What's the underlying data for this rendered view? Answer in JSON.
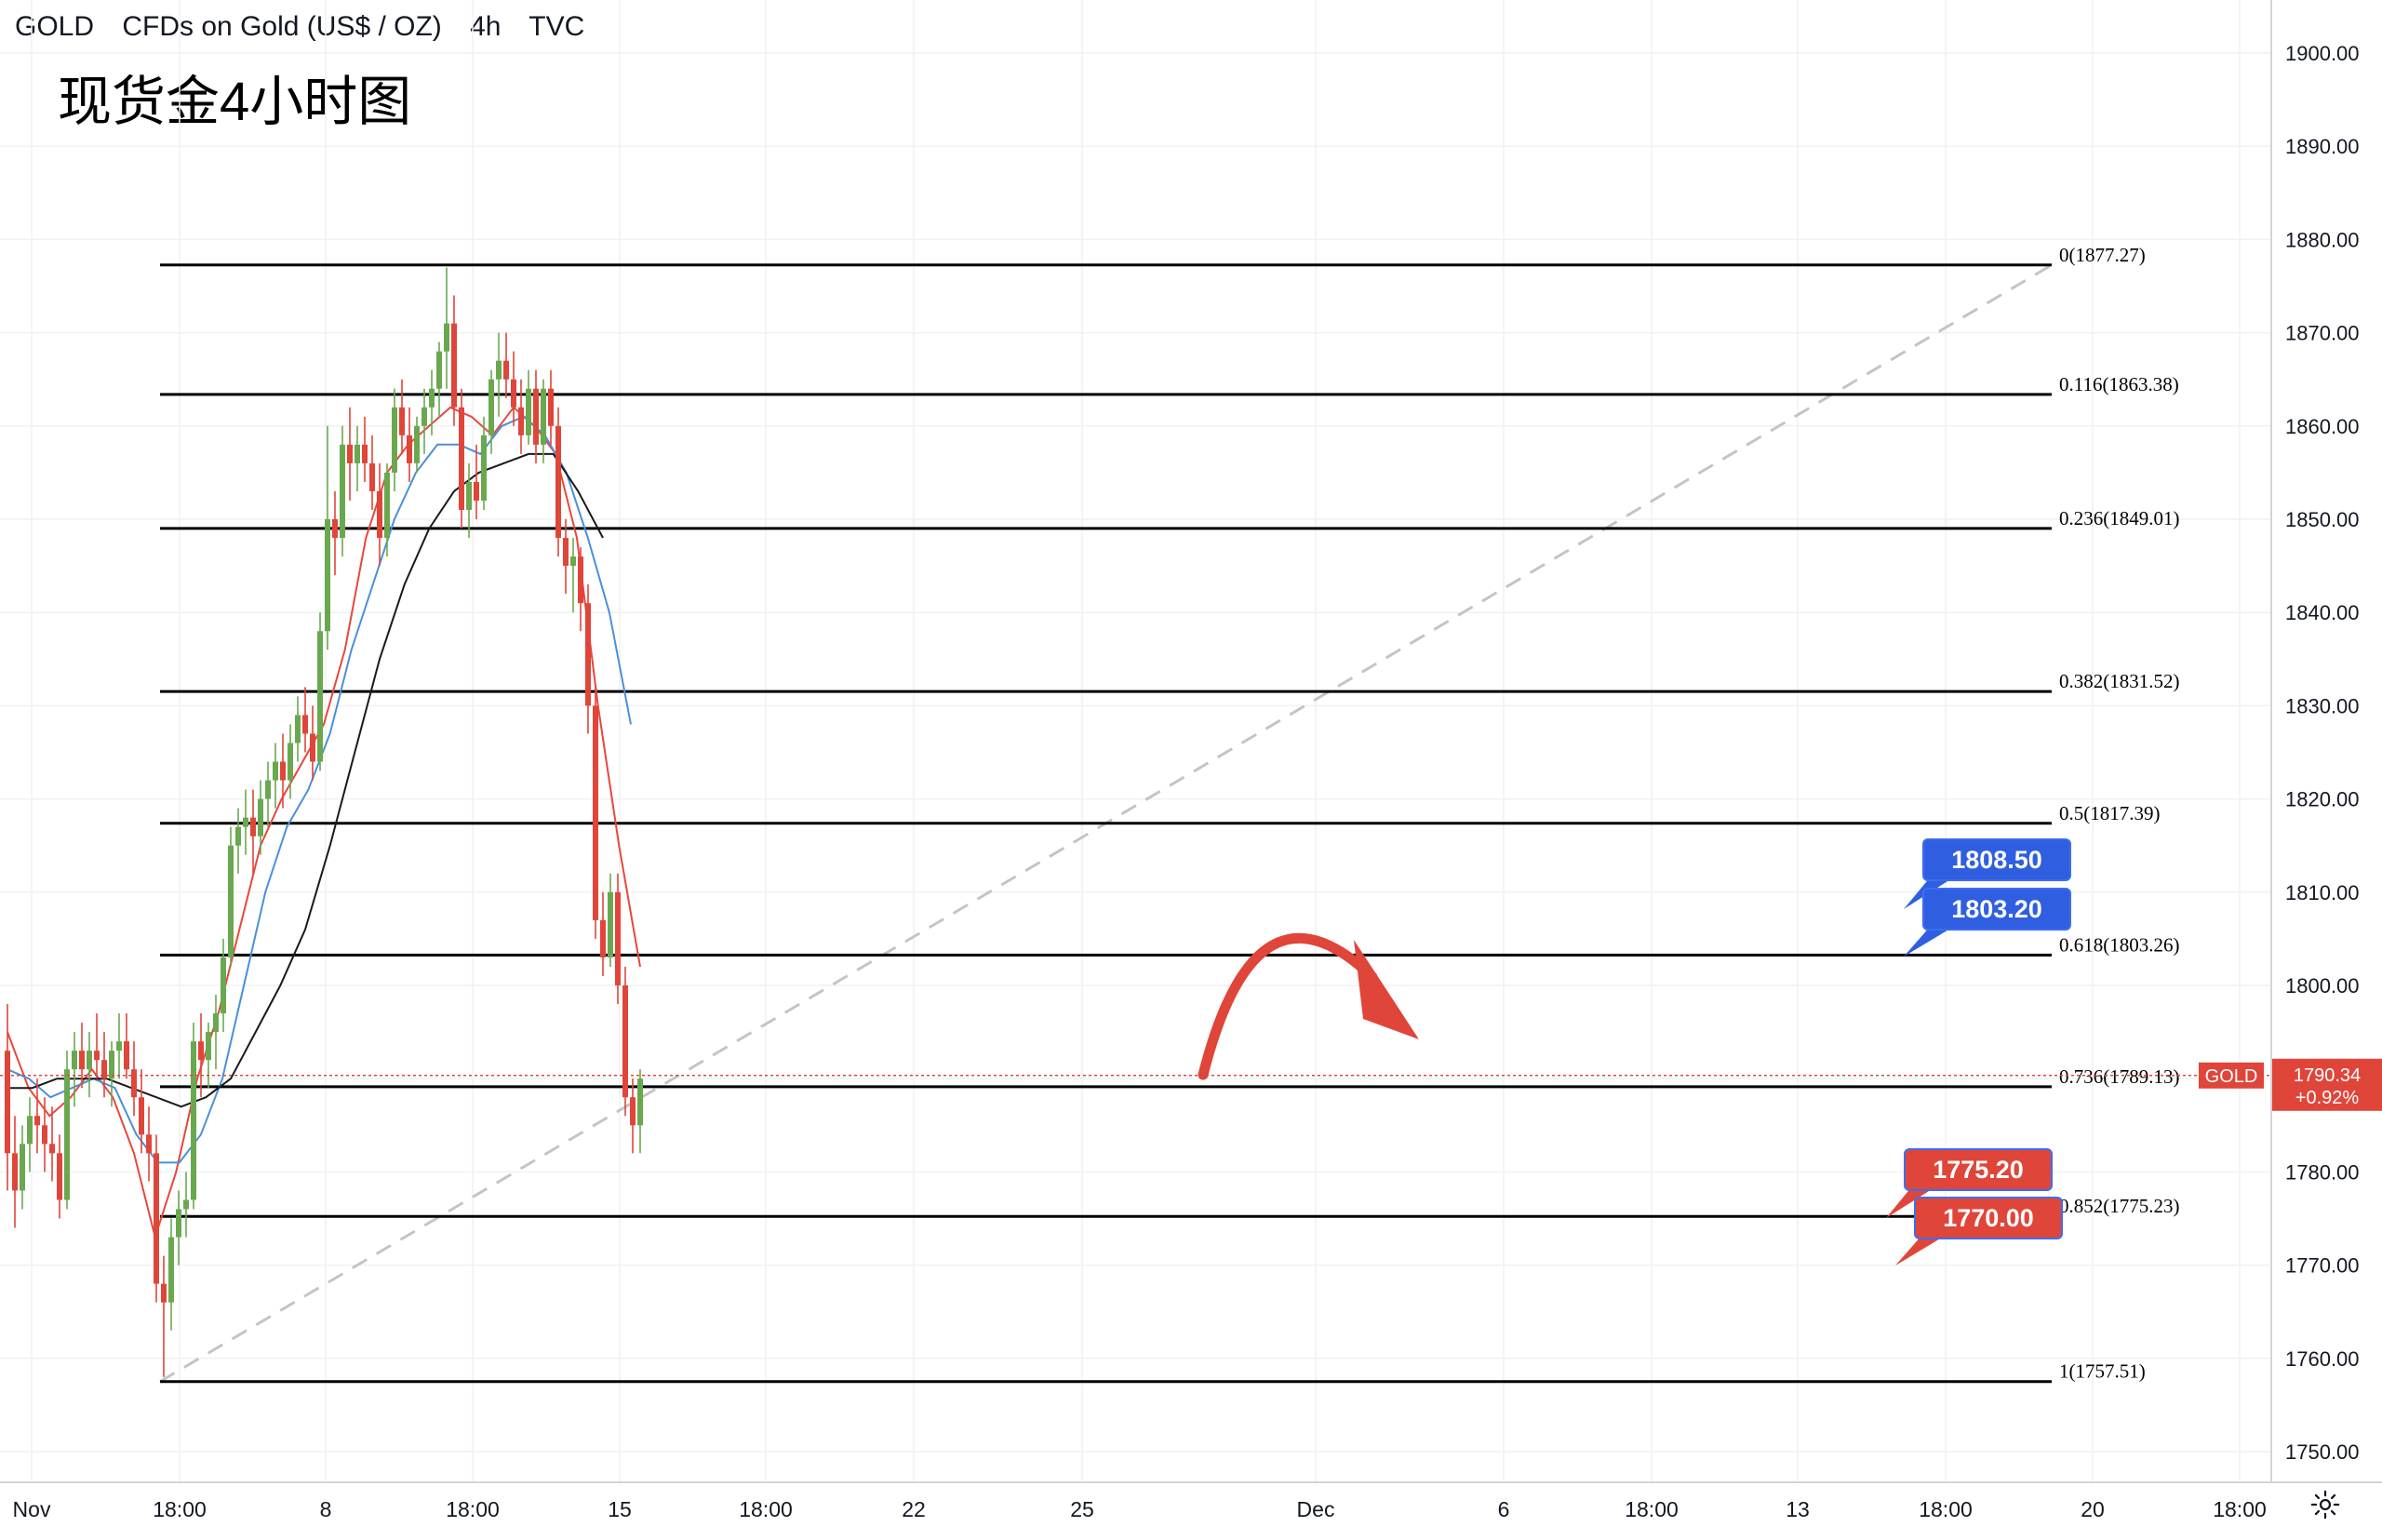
{
  "header": {
    "symbol": "GOLD",
    "description": "CFDs on Gold (US$ / OZ)",
    "interval": "4h",
    "source": "TVC"
  },
  "title": "现货金4小时图",
  "colors": {
    "up": "#6aa84f",
    "down": "#e0453a",
    "ma_red": "#e8473c",
    "ma_blue": "#4a90d9",
    "ma_black": "#1a1a1a",
    "fib_line": "#000000",
    "callout_blue": "#2f5fe0",
    "callout_red": "#e0453a",
    "price_tag": "#e0453a",
    "dashed": "#c4c4c4"
  },
  "chart_data": {
    "type": "candlestick",
    "symbol": "GOLD",
    "timeframe": "4h",
    "ylim": [
      1745,
      1905
    ],
    "y_ticks": [
      "1900.00",
      "1890.00",
      "1880.00",
      "1870.00",
      "1860.00",
      "1850.00",
      "1840.00",
      "1830.00",
      "1820.00",
      "1810.00",
      "1800.00",
      "1790.00",
      "1780.00",
      "1770.00",
      "1760.00",
      "1750.00"
    ],
    "x_ticks": [
      "Nov",
      "18:00",
      "8",
      "18:00",
      "15",
      "18:00",
      "22",
      "25",
      "Dec",
      "6",
      "18:00",
      "13",
      "18:00",
      "20",
      "18:00"
    ],
    "candles_ohlc": [
      [
        1793,
        1798,
        1778,
        1782
      ],
      [
        1782,
        1786,
        1774,
        1778
      ],
      [
        1778,
        1785,
        1776,
        1783
      ],
      [
        1783,
        1788,
        1780,
        1786
      ],
      [
        1786,
        1790,
        1782,
        1785
      ],
      [
        1785,
        1788,
        1780,
        1783
      ],
      [
        1783,
        1787,
        1779,
        1782
      ],
      [
        1782,
        1784,
        1775,
        1777
      ],
      [
        1777,
        1793,
        1776,
        1791
      ],
      [
        1791,
        1795,
        1787,
        1793
      ],
      [
        1793,
        1796,
        1789,
        1791
      ],
      [
        1791,
        1795,
        1788,
        1793
      ],
      [
        1793,
        1797,
        1790,
        1792
      ],
      [
        1792,
        1795,
        1788,
        1790
      ],
      [
        1790,
        1794,
        1787,
        1793
      ],
      [
        1793,
        1797,
        1790,
        1794
      ],
      [
        1794,
        1797,
        1790,
        1791
      ],
      [
        1791,
        1794,
        1786,
        1788
      ],
      [
        1788,
        1791,
        1782,
        1784
      ],
      [
        1784,
        1787,
        1779,
        1782
      ],
      [
        1782,
        1784,
        1766,
        1768
      ],
      [
        1768,
        1771,
        1758,
        1766
      ],
      [
        1766,
        1775,
        1763,
        1773
      ],
      [
        1773,
        1778,
        1770,
        1776
      ],
      [
        1776,
        1780,
        1773,
        1777
      ],
      [
        1777,
        1796,
        1776,
        1794
      ],
      [
        1794,
        1797,
        1788,
        1792
      ],
      [
        1792,
        1796,
        1789,
        1795
      ],
      [
        1795,
        1799,
        1791,
        1797
      ],
      [
        1797,
        1805,
        1795,
        1803
      ],
      [
        1803,
        1817,
        1802,
        1815
      ],
      [
        1815,
        1819,
        1812,
        1817
      ],
      [
        1817,
        1821,
        1814,
        1818
      ],
      [
        1818,
        1821,
        1812,
        1816
      ],
      [
        1816,
        1822,
        1814,
        1820
      ],
      [
        1820,
        1824,
        1817,
        1822
      ],
      [
        1822,
        1826,
        1819,
        1824
      ],
      [
        1824,
        1827,
        1819,
        1822
      ],
      [
        1822,
        1828,
        1820,
        1826
      ],
      [
        1826,
        1831,
        1824,
        1829
      ],
      [
        1829,
        1832,
        1825,
        1827
      ],
      [
        1827,
        1830,
        1822,
        1824
      ],
      [
        1824,
        1840,
        1823,
        1838
      ],
      [
        1838,
        1860,
        1836,
        1850
      ],
      [
        1850,
        1853,
        1844,
        1848
      ],
      [
        1848,
        1860,
        1846,
        1858
      ],
      [
        1858,
        1862,
        1852,
        1856
      ],
      [
        1856,
        1860,
        1853,
        1858
      ],
      [
        1858,
        1861,
        1854,
        1856
      ],
      [
        1856,
        1859,
        1851,
        1853
      ],
      [
        1853,
        1856,
        1845,
        1848
      ],
      [
        1848,
        1856,
        1846,
        1855
      ],
      [
        1855,
        1864,
        1853,
        1862
      ],
      [
        1862,
        1865,
        1857,
        1859
      ],
      [
        1859,
        1862,
        1854,
        1856
      ],
      [
        1856,
        1861,
        1855,
        1860
      ],
      [
        1860,
        1864,
        1857,
        1862
      ],
      [
        1862,
        1866,
        1859,
        1864
      ],
      [
        1864,
        1869,
        1861,
        1868
      ],
      [
        1868,
        1877,
        1864,
        1871
      ],
      [
        1871,
        1874,
        1860,
        1862
      ],
      [
        1862,
        1864,
        1849,
        1851
      ],
      [
        1851,
        1856,
        1848,
        1854
      ],
      [
        1854,
        1858,
        1850,
        1852
      ],
      [
        1852,
        1861,
        1851,
        1859
      ],
      [
        1859,
        1866,
        1857,
        1865
      ],
      [
        1865,
        1870,
        1861,
        1867
      ],
      [
        1867,
        1870,
        1863,
        1865
      ],
      [
        1865,
        1868,
        1860,
        1862
      ],
      [
        1862,
        1865,
        1857,
        1859
      ],
      [
        1859,
        1866,
        1858,
        1864
      ],
      [
        1864,
        1866,
        1856,
        1858
      ],
      [
        1858,
        1865,
        1856,
        1864
      ],
      [
        1864,
        1866,
        1858,
        1860
      ],
      [
        1860,
        1862,
        1846,
        1848
      ],
      [
        1848,
        1850,
        1842,
        1845
      ],
      [
        1845,
        1848,
        1840,
        1846
      ],
      [
        1846,
        1847,
        1838,
        1841
      ],
      [
        1841,
        1843,
        1827,
        1830
      ],
      [
        1830,
        1832,
        1805,
        1807
      ],
      [
        1807,
        1810,
        1801,
        1803
      ],
      [
        1803,
        1812,
        1802,
        1810
      ],
      [
        1810,
        1812,
        1798,
        1800
      ],
      [
        1800,
        1802,
        1786,
        1788
      ],
      [
        1788,
        1790,
        1782,
        1785
      ],
      [
        1785,
        1791,
        1782,
        1790
      ]
    ],
    "moving_averages": [
      {
        "color": "#e8473c",
        "values": [
          1795,
          1789,
          1786,
          1788,
          1791,
          1788,
          1782,
          1773,
          1780,
          1790,
          1797,
          1806,
          1815,
          1820,
          1824,
          1828,
          1836,
          1848,
          1855,
          1858,
          1860,
          1862,
          1861,
          1859,
          1862,
          1860,
          1857,
          1848,
          1830,
          1815,
          1802
        ]
      },
      {
        "color": "#4a90d9",
        "values": [
          1791,
          1790,
          1788,
          1789,
          1790,
          1789,
          1784,
          1781,
          1781,
          1784,
          1790,
          1800,
          1810,
          1817,
          1821,
          1827,
          1836,
          1843,
          1850,
          1855,
          1858,
          1858,
          1857,
          1860,
          1861,
          1859,
          1855,
          1848,
          1840,
          1828
        ]
      },
      {
        "color": "#1a1a1a",
        "values": [
          1789,
          1789,
          1790,
          1790,
          1790,
          1789,
          1788,
          1787,
          1788,
          1790,
          1795,
          1800,
          1806,
          1815,
          1825,
          1835,
          1843,
          1849,
          1853,
          1855,
          1856,
          1857,
          1857,
          1853,
          1848
        ]
      }
    ],
    "fib_levels": [
      {
        "label": "0(1877.27)",
        "value": 1877.27
      },
      {
        "label": "0.116(1863.38)",
        "value": 1863.38
      },
      {
        "label": "0.236(1849.01)",
        "value": 1849.01
      },
      {
        "label": "0.382(1831.52)",
        "value": 1831.52
      },
      {
        "label": "0.5(1817.39)",
        "value": 1817.39
      },
      {
        "label": "0.618(1803.26)",
        "value": 1803.26
      },
      {
        "label": "0.736(1789.13)",
        "value": 1789.13
      },
      {
        "label": "0.852(1775.23)",
        "value": 1775.23
      },
      {
        "label": "1(1757.51)",
        "value": 1757.51
      }
    ],
    "current_price": {
      "symbol": "GOLD",
      "value": "1790.34",
      "change": "+0.92%"
    },
    "resistance_callouts": [
      "1808.50",
      "1803.20"
    ],
    "support_callouts": [
      "1775.20",
      "1770.00"
    ],
    "annotation": "curved red arrow pointing down"
  }
}
